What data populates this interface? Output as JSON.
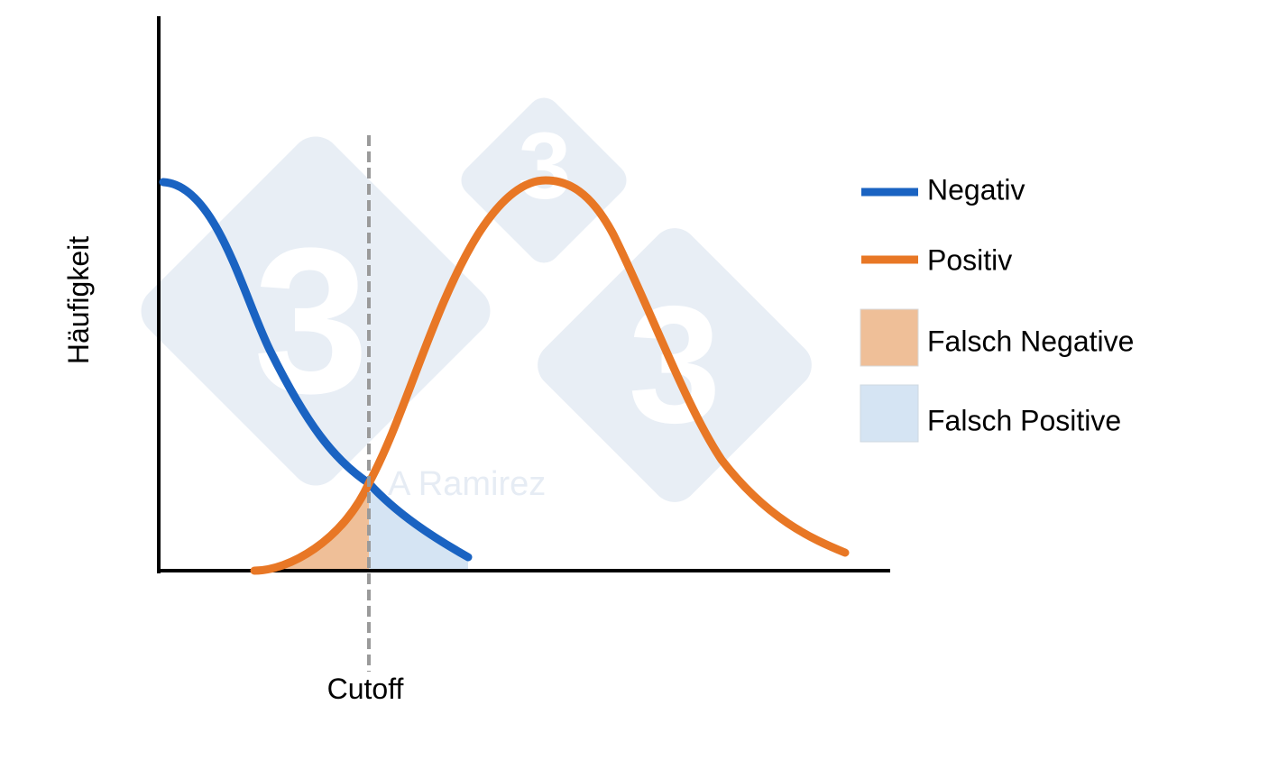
{
  "watermark": {
    "glyph": "3",
    "author": "A Ramirez",
    "color": "#e8eef5"
  },
  "axes": {
    "ylabel": "Häufigkeit",
    "cutoff_label": "Cutoff"
  },
  "colors": {
    "negativ": "#1a63c2",
    "positiv": "#e87725",
    "falsch_negative": "#efbf98",
    "falsch_positive": "#d5e4f3",
    "cutoff_line": "#9a9a9a",
    "axis": "#000000"
  },
  "legend": {
    "items": [
      {
        "label": "Negativ",
        "kind": "line",
        "color": "#1a63c2"
      },
      {
        "label": "Positiv",
        "kind": "line",
        "color": "#e87725"
      },
      {
        "label": "Falsch Negative",
        "kind": "box",
        "color": "#efbf98"
      },
      {
        "label": "Falsch Positive",
        "kind": "box",
        "color": "#d5e4f3"
      }
    ]
  }
}
